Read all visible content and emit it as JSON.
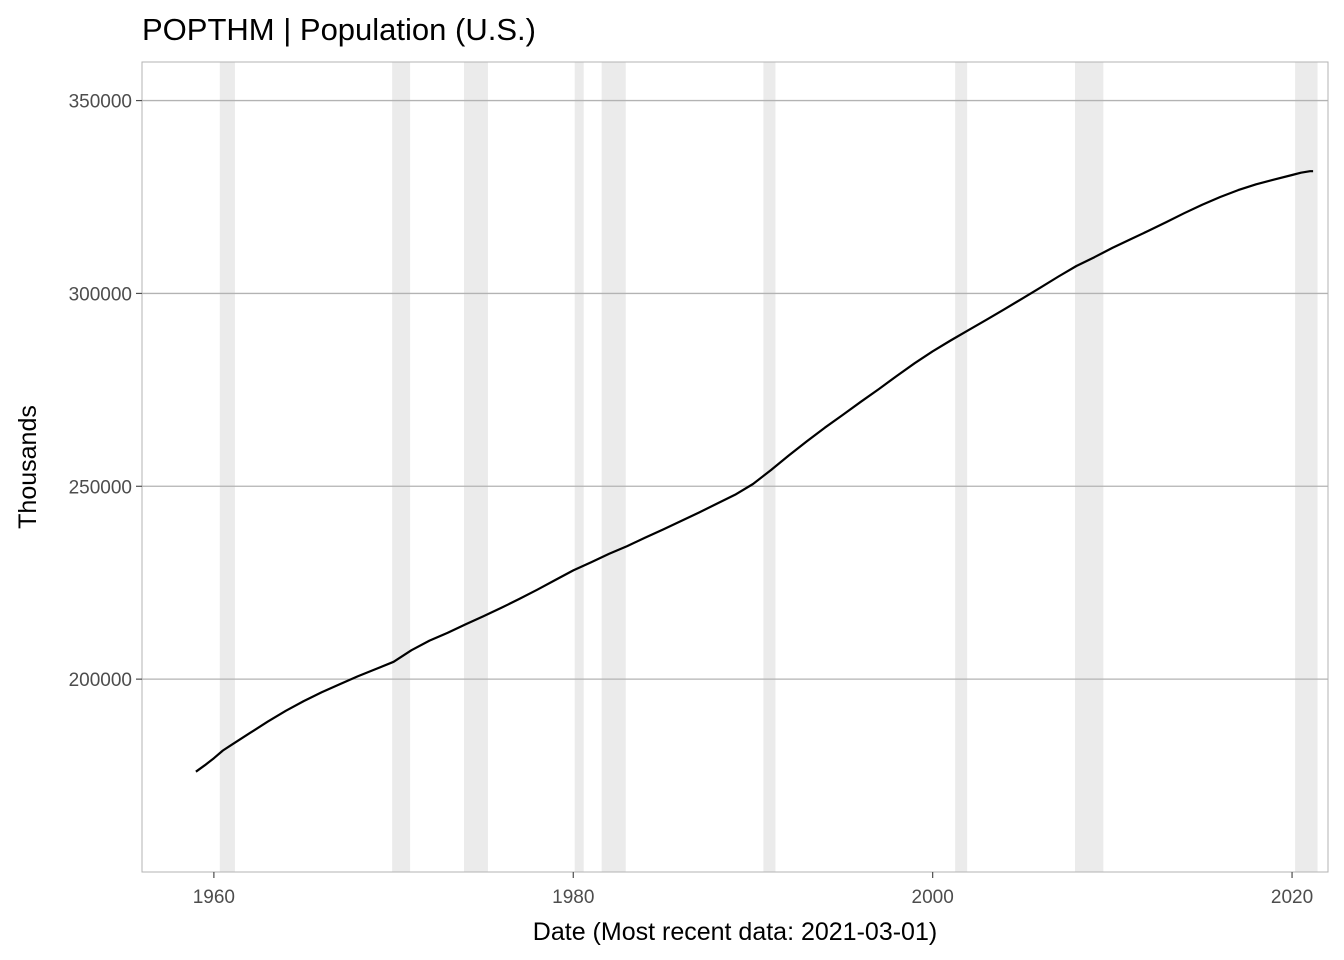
{
  "chart_data": {
    "type": "line",
    "title": "POPTHM | Population (U.S.)",
    "xlabel": "Date (Most recent data: 2021-03-01)",
    "ylabel": "Thousands",
    "xlim": [
      1956.0,
      2022.0
    ],
    "ylim": [
      150000,
      360000
    ],
    "x_ticks": [
      1960,
      1980,
      2000,
      2020
    ],
    "x_tick_labels": [
      "1960",
      "1980",
      "2000",
      "2020"
    ],
    "y_ticks": [
      200000,
      250000,
      300000,
      350000
    ],
    "y_tick_labels": [
      "200000",
      "250000",
      "300000",
      "350000"
    ],
    "grid": "horizontal major",
    "legend": "none",
    "colors": {
      "line": "#000000",
      "recession": "#ebebeb",
      "grid": "#b3b3b3",
      "panel_border": "#b3b3b3"
    },
    "recessions": [
      [
        1960.33,
        1961.17
      ],
      [
        1969.92,
        1970.92
      ],
      [
        1973.92,
        1975.25
      ],
      [
        1980.08,
        1980.58
      ],
      [
        1981.58,
        1982.92
      ],
      [
        1990.58,
        1991.25
      ],
      [
        2001.25,
        2001.92
      ],
      [
        2007.92,
        2009.5
      ],
      [
        2020.17,
        2021.42
      ]
    ],
    "series": [
      {
        "x": [
          1959.0,
          1959.5,
          1960.0,
          1960.5,
          1961.0,
          1962.0,
          1963.0,
          1964.0,
          1965.0,
          1966.0,
          1967.0,
          1968.0,
          1969.0,
          1970.0,
          1971.0,
          1972.0,
          1973.0,
          1974.0,
          1975.0,
          1976.0,
          1977.0,
          1978.0,
          1979.0,
          1980.0,
          1981.0,
          1982.0,
          1983.0,
          1984.0,
          1985.0,
          1986.0,
          1987.0,
          1988.0,
          1989.0,
          1990.0,
          1991.0,
          1992.0,
          1993.0,
          1994.0,
          1995.0,
          1996.0,
          1997.0,
          1998.0,
          1999.0,
          2000.0,
          2001.0,
          2002.0,
          2003.0,
          2004.0,
          2005.0,
          2006.0,
          2007.0,
          2008.0,
          2009.0,
          2010.0,
          2011.0,
          2012.0,
          2013.0,
          2014.0,
          2015.0,
          2016.0,
          2017.0,
          2018.0,
          2019.0,
          2020.0,
          2020.5,
          2021.0,
          2021.17
        ],
        "values": [
          176000,
          177700,
          179500,
          181500,
          183000,
          186000,
          189000,
          191800,
          194300,
          196600,
          198700,
          200700,
          202600,
          204500,
          207500,
          210000,
          212000,
          214200,
          216300,
          218500,
          220800,
          223200,
          225700,
          228200,
          230300,
          232500,
          234500,
          236700,
          238800,
          241000,
          243200,
          245500,
          247800,
          250600,
          254200,
          258000,
          261700,
          265200,
          268500,
          271900,
          275200,
          278600,
          281900,
          285000,
          287800,
          290500,
          293200,
          295900,
          298700,
          301500,
          304400,
          307100,
          309400,
          311800,
          314000,
          316200,
          318500,
          320800,
          323000,
          325000,
          326800,
          328300,
          329500,
          330700,
          331300,
          331700,
          331700
        ]
      }
    ]
  }
}
